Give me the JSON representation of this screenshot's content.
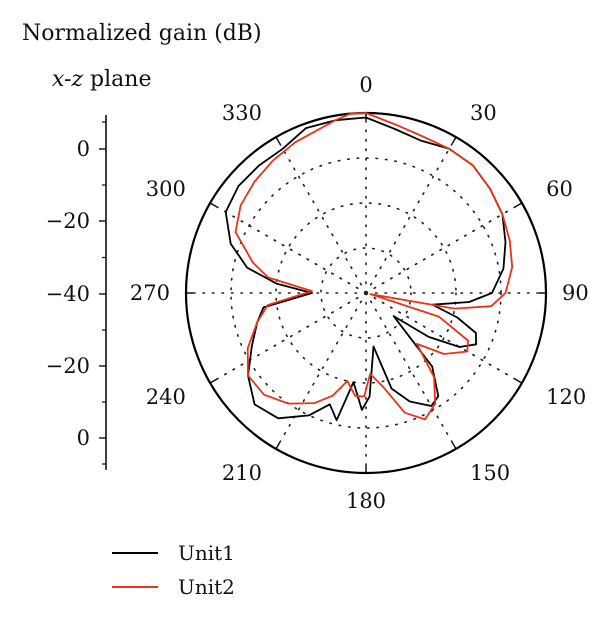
{
  "header": {
    "title": "Normalized gain (dB)",
    "plane_italic": "x-z",
    "plane_suffix": " plane"
  },
  "chart_data": {
    "type": "polar-line",
    "radial_axis": {
      "ticks": [
        "0",
        "−20",
        "−40",
        "−20",
        "0"
      ],
      "range_db": [
        -40,
        0
      ]
    },
    "angle_ticks": [
      "0",
      "30",
      "60",
      "90",
      "120",
      "150",
      "180",
      "210",
      "240",
      "270",
      "300",
      "330"
    ],
    "grid": true,
    "legend_position": "bottom-left",
    "series": [
      {
        "name": "Unit1",
        "color": "#000000",
        "points": [
          [
            0,
            -1
          ],
          [
            10,
            -3
          ],
          [
            20,
            -4
          ],
          [
            30,
            -3
          ],
          [
            40,
            -3
          ],
          [
            50,
            -4
          ],
          [
            60,
            -5
          ],
          [
            70,
            -7
          ],
          [
            80,
            -9
          ],
          [
            90,
            -12
          ],
          [
            95,
            -17
          ],
          [
            100,
            -25
          ],
          [
            105,
            -19
          ],
          [
            110,
            -14
          ],
          [
            115,
            -13
          ],
          [
            120,
            -16
          ],
          [
            125,
            -23
          ],
          [
            130,
            -32
          ],
          [
            138,
            -18
          ],
          [
            145,
            -12
          ],
          [
            150,
            -11
          ],
          [
            158,
            -14
          ],
          [
            165,
            -18
          ],
          [
            172,
            -28
          ],
          [
            178,
            -17
          ],
          [
            182,
            -14
          ],
          [
            188,
            -20
          ],
          [
            193,
            -11
          ],
          [
            198,
            -14
          ],
          [
            205,
            -10
          ],
          [
            215,
            -6
          ],
          [
            225,
            -5
          ],
          [
            235,
            -8
          ],
          [
            245,
            -12
          ],
          [
            255,
            -15
          ],
          [
            262,
            -17
          ],
          [
            270,
            -28
          ],
          [
            276,
            -20
          ],
          [
            282,
            -13
          ],
          [
            290,
            -8
          ],
          [
            300,
            -4
          ],
          [
            310,
            -3
          ],
          [
            320,
            -3
          ],
          [
            330,
            -3
          ],
          [
            340,
            -1
          ],
          [
            350,
            -1
          ],
          [
            360,
            -1
          ]
        ]
      },
      {
        "name": "Unit2",
        "color": "#e8331a",
        "points": [
          [
            0,
            0
          ],
          [
            10,
            -2
          ],
          [
            20,
            -3
          ],
          [
            30,
            -3
          ],
          [
            40,
            -3
          ],
          [
            50,
            -4
          ],
          [
            60,
            -5
          ],
          [
            70,
            -6
          ],
          [
            80,
            -7
          ],
          [
            90,
            -9
          ],
          [
            96,
            -12
          ],
          [
            100,
            -20
          ],
          [
            104,
            -39
          ],
          [
            108,
            -23
          ],
          [
            115,
            -15
          ],
          [
            120,
            -14
          ],
          [
            128,
            -18
          ],
          [
            135,
            -24
          ],
          [
            141,
            -16
          ],
          [
            148,
            -11
          ],
          [
            155,
            -9
          ],
          [
            162,
            -12
          ],
          [
            170,
            -19
          ],
          [
            177,
            -22
          ],
          [
            181,
            -17
          ],
          [
            186,
            -17
          ],
          [
            192,
            -20
          ],
          [
            198,
            -16
          ],
          [
            205,
            -13
          ],
          [
            215,
            -10
          ],
          [
            225,
            -8
          ],
          [
            235,
            -8
          ],
          [
            245,
            -11
          ],
          [
            255,
            -15
          ],
          [
            263,
            -18
          ],
          [
            272,
            -28
          ],
          [
            279,
            -18
          ],
          [
            285,
            -14
          ],
          [
            295,
            -8
          ],
          [
            305,
            -6
          ],
          [
            315,
            -5
          ],
          [
            325,
            -4
          ],
          [
            335,
            -3
          ],
          [
            345,
            -2
          ],
          [
            350,
            -1
          ],
          [
            355,
            0
          ],
          [
            360,
            0
          ]
        ]
      }
    ]
  }
}
